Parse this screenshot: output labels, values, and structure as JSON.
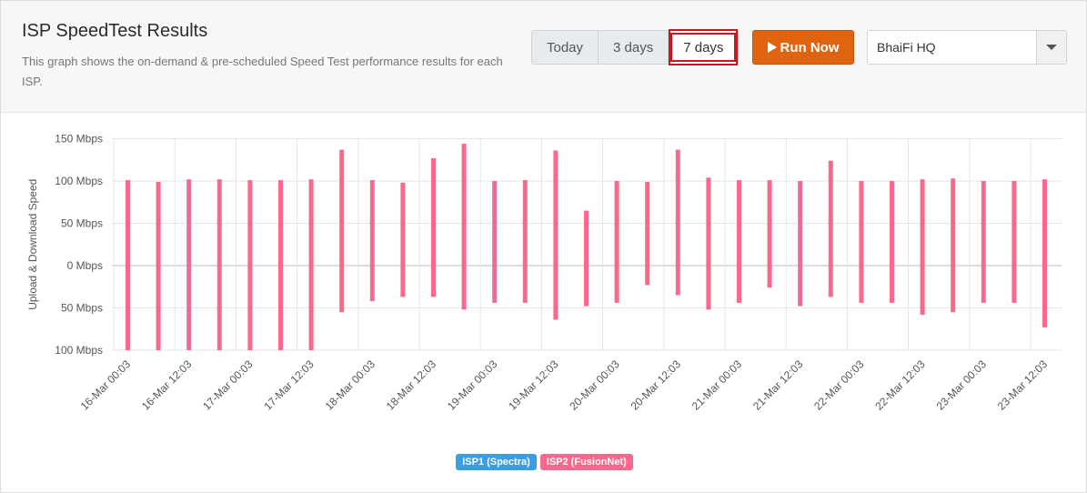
{
  "header": {
    "title": "ISP SpeedTest Results",
    "description": "This graph shows the on-demand & pre-scheduled Speed Test performance results for each ISP."
  },
  "range": {
    "options": [
      "Today",
      "3 days",
      "7 days"
    ],
    "selected": "7 days"
  },
  "run_button": {
    "label": "Run Now",
    "icon": "play-icon",
    "color": "#e0630f"
  },
  "location_select": {
    "value": "BhaiFi HQ",
    "icon": "chevron-down-icon"
  },
  "colors": {
    "isp1": "#3a9ee0",
    "isp2": "#f6698d"
  },
  "legend": {
    "isp1": "ISP1 (Spectra)",
    "isp2": "ISP2 (FusionNet)"
  },
  "chart_data": {
    "type": "bar",
    "ylabel": "Upload & Download Speed",
    "y_ticks": [
      "150 Mbps",
      "100 Mbps",
      "50 Mbps",
      "0 Mbps",
      "50 Mbps",
      "100 Mbps"
    ],
    "ylim": [
      -100,
      150
    ],
    "x_ticks": [
      "16-Mar 00:03",
      "16-Mar 12:03",
      "17-Mar 00:03",
      "17-Mar 12:03",
      "18-Mar 00:03",
      "18-Mar 12:03",
      "19-Mar 00:03",
      "19-Mar 12:03",
      "20-Mar 00:03",
      "20-Mar 12:03",
      "21-Mar 00:03",
      "21-Mar 12:03",
      "22-Mar 00:03",
      "22-Mar 12:03",
      "23-Mar 00:03",
      "23-Mar 12:03"
    ],
    "grid": true,
    "legend_position": "bottom-center",
    "series": [
      {
        "name": "ISP2 (FusionNet)",
        "download": [
          101,
          99,
          102,
          102,
          101,
          101,
          102,
          137,
          101,
          98,
          127,
          144,
          100,
          101,
          136,
          65,
          100,
          99,
          137,
          104,
          101,
          101,
          100,
          124,
          100,
          100,
          102,
          103,
          100,
          100,
          102
        ],
        "upload": [
          100,
          100,
          100,
          100,
          100,
          100,
          100,
          55,
          42,
          37,
          37,
          52,
          44,
          44,
          64,
          48,
          44,
          23,
          35,
          52,
          44,
          26,
          48,
          37,
          44,
          44,
          58,
          55,
          44,
          44,
          73
        ]
      },
      {
        "name": "ISP1 (Spectra)",
        "download": [],
        "upload": []
      }
    ]
  }
}
